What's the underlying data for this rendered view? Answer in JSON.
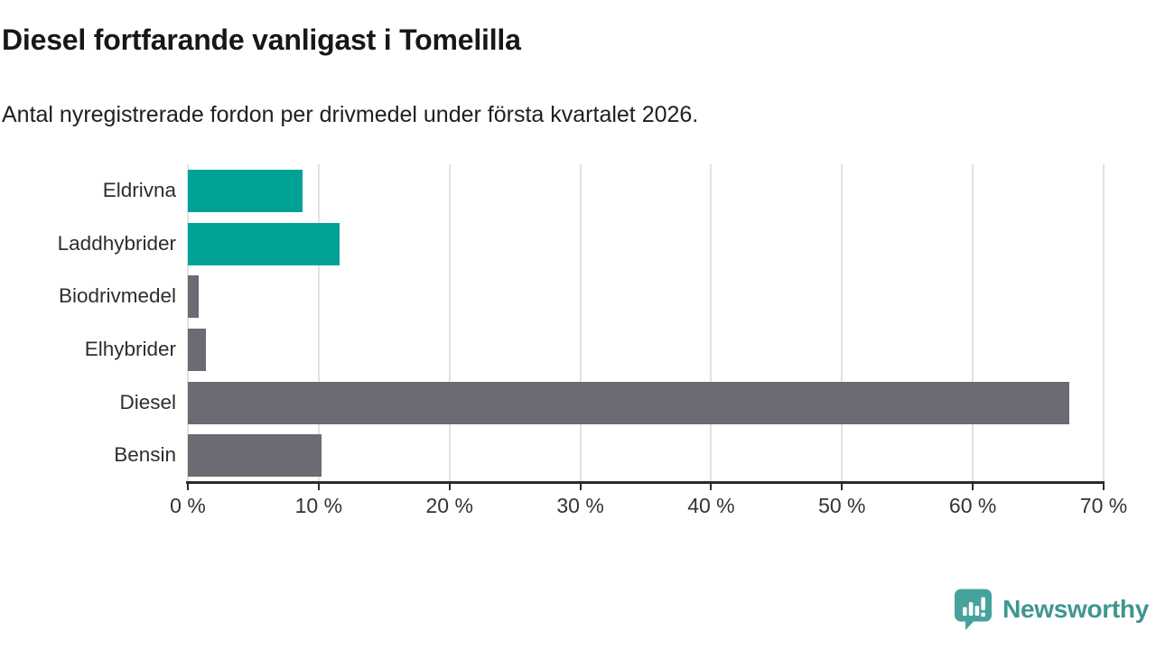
{
  "header": {
    "title": "Diesel fortfarande vanligast i Tomelilla",
    "subtitle": "Antal nyregistrerade fordon per drivmedel under första kvartalet 2026."
  },
  "chart_data": {
    "type": "bar",
    "orientation": "horizontal",
    "title": "Diesel fortfarande vanligast i Tomelilla",
    "subtitle": "Antal nyregistrerade fordon per drivmedel under första kvartalet 2026.",
    "categories": [
      "Eldrivna",
      "Laddhybrider",
      "Biodrivmedel",
      "Elhybrider",
      "Diesel",
      "Bensin"
    ],
    "values": [
      8.8,
      11.6,
      0.8,
      1.4,
      67.4,
      10.2
    ],
    "unit": "%",
    "bar_colors": [
      "#00A296",
      "#00A296",
      "#6C6A72",
      "#6C6A72",
      "#6C6A72",
      "#6C6A72"
    ],
    "series_colors": {
      "electric_highlight": "#00A296",
      "other": "#6C6A72"
    },
    "xlabel": "",
    "ylabel": "",
    "x_axis": {
      "min": 0,
      "max": 70,
      "tick_step": 10,
      "tick_labels": [
        "0 %",
        "10 %",
        "20 %",
        "30 %",
        "40 %",
        "50 %",
        "60 %",
        "70 %"
      ]
    },
    "grid": true,
    "gridline_color": "#e2e2e2",
    "legend": "none"
  },
  "branding": {
    "logo_text": "Newsworthy",
    "logo_icon": "newsworthy-speech-bubble-bar-chart-icon",
    "logo_bubble_color": "#47A29C",
    "logo_text_color": "#3E968F"
  },
  "colors": {
    "background": "#FFFFFF",
    "title_text": "#171717",
    "axis_text": "#333333",
    "axis_line": "#2B2B2B"
  }
}
